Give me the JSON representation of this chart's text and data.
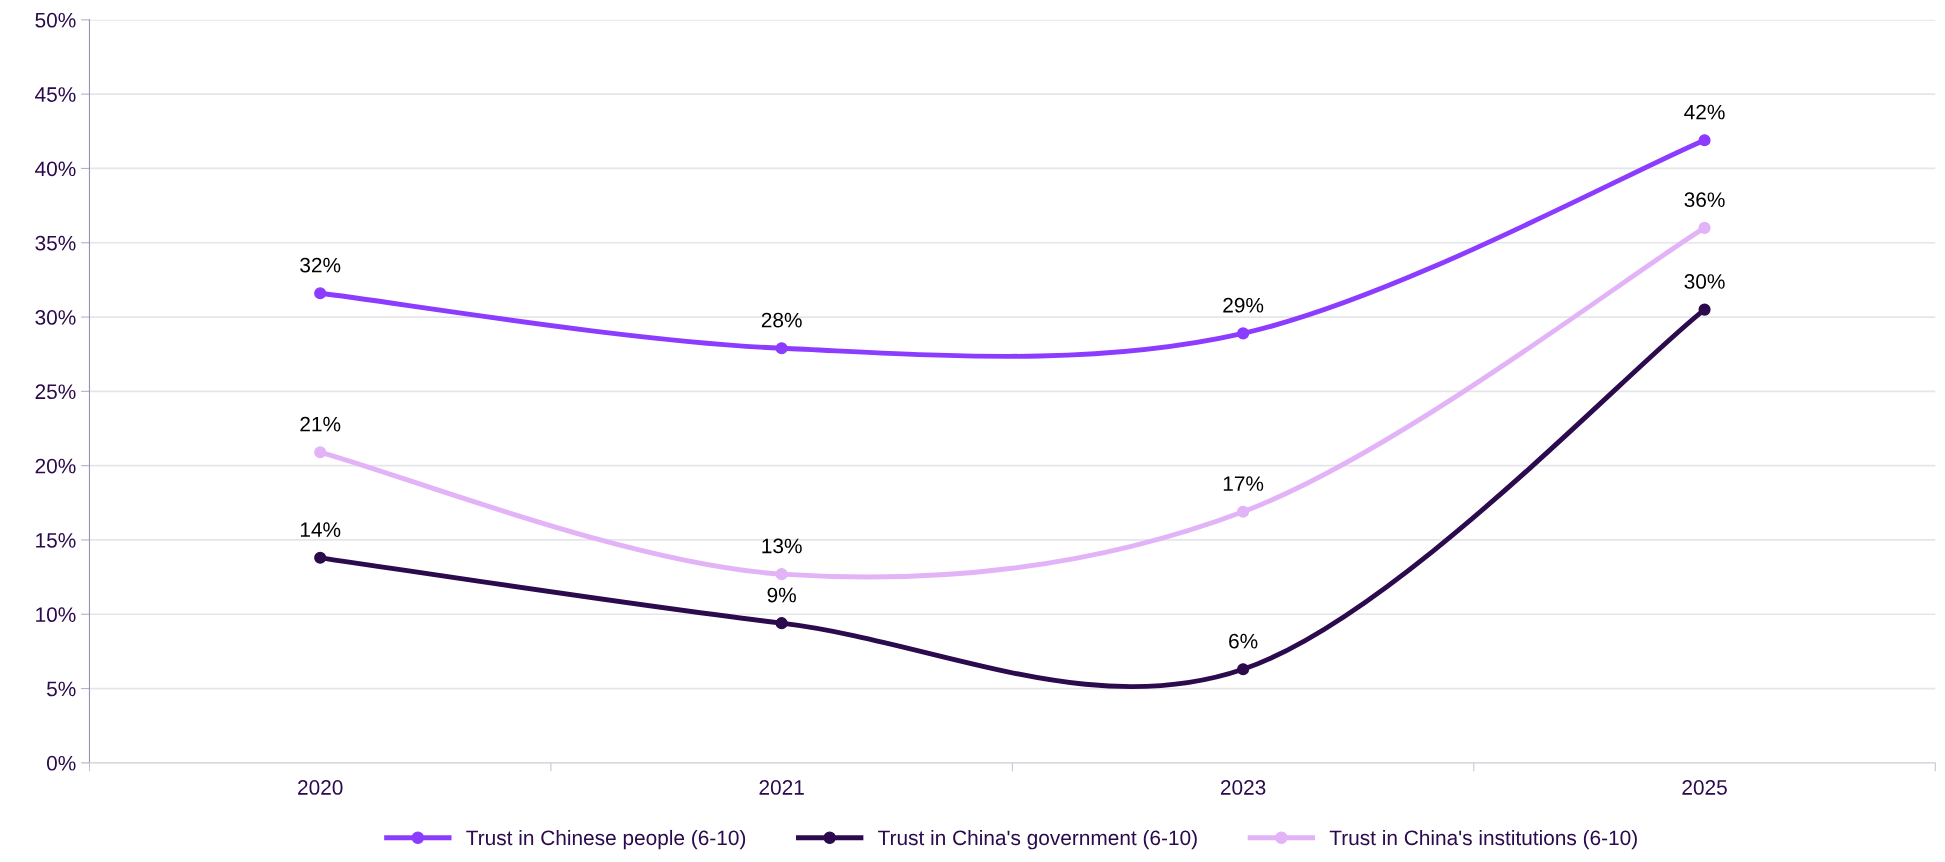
{
  "chart_data": {
    "type": "line",
    "categories": [
      "2020",
      "2021",
      "2023",
      "2025"
    ],
    "series": [
      {
        "name": "Trust in Chinese people (6-10)",
        "color": "#8c3cff",
        "values": [
          31.6,
          27.9,
          28.9,
          41.9
        ],
        "value_labels": [
          "32%",
          "28%",
          "29%",
          "42%"
        ]
      },
      {
        "name": "Trust in China's government (6-10)",
        "color": "#2b0a4d",
        "values": [
          13.8,
          9.4,
          6.3,
          30.5
        ],
        "value_labels": [
          "14%",
          "9%",
          "6%",
          "30%"
        ]
      },
      {
        "name": "Trust in China's institutions (6-10)",
        "color": "#e2b3f7",
        "values": [
          20.9,
          12.7,
          16.9,
          36.0
        ],
        "value_labels": [
          "21%",
          "13%",
          "17%",
          "36%"
        ]
      }
    ],
    "ylim": [
      0,
      50
    ],
    "yticks": [
      {
        "value": 0,
        "label": "0%"
      },
      {
        "value": 5,
        "label": "5%"
      },
      {
        "value": 10,
        "label": "10%"
      },
      {
        "value": 15,
        "label": "15%"
      },
      {
        "value": 20,
        "label": "20%"
      },
      {
        "value": 25,
        "label": "25%"
      },
      {
        "value": 30,
        "label": "30%"
      },
      {
        "value": 35,
        "label": "35%"
      },
      {
        "value": 40,
        "label": "40%"
      },
      {
        "value": 45,
        "label": "45%"
      },
      {
        "value": 50,
        "label": "50%"
      }
    ],
    "grid": "y",
    "legend": "bottom",
    "marker": "circle",
    "line_style": "solid"
  }
}
